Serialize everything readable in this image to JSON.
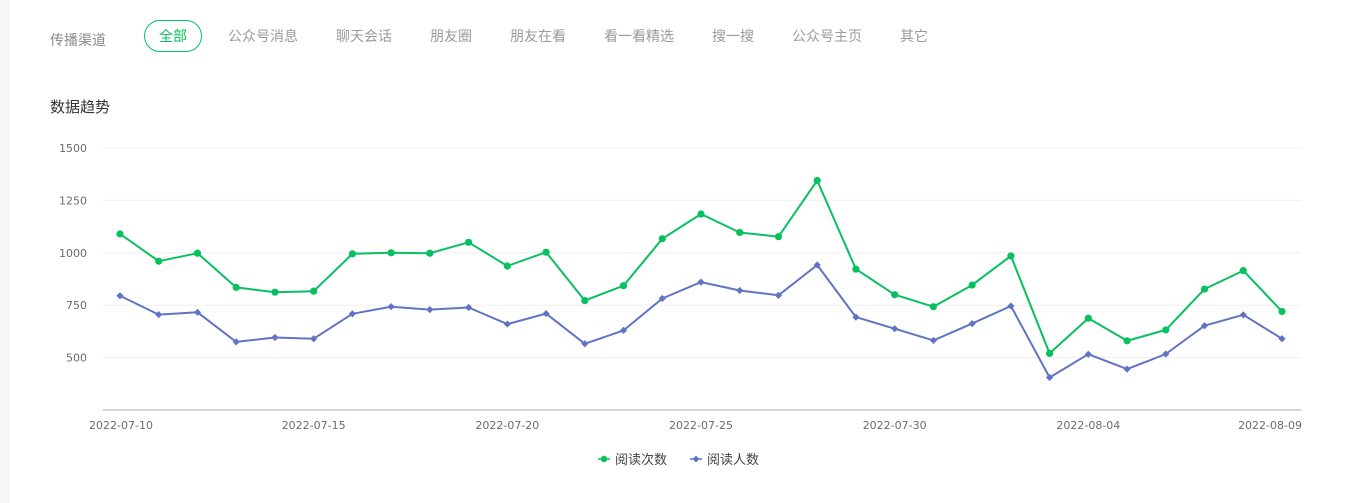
{
  "filter": {
    "label": "传播渠道",
    "tabs": [
      {
        "label": "全部",
        "active": true
      },
      {
        "label": "公众号消息",
        "active": false
      },
      {
        "label": "聊天会话",
        "active": false
      },
      {
        "label": "朋友圈",
        "active": false
      },
      {
        "label": "朋友在看",
        "active": false
      },
      {
        "label": "看一看精选",
        "active": false
      },
      {
        "label": "搜一搜",
        "active": false
      },
      {
        "label": "公众号主页",
        "active": false
      },
      {
        "label": "其它",
        "active": false
      }
    ]
  },
  "section": {
    "title": "数据趋势"
  },
  "colors": {
    "accent": "#07c160",
    "series1": "#07c160",
    "series2": "#6173c4"
  },
  "chart_data": {
    "type": "line",
    "x": [
      "2022-07-10",
      "2022-07-11",
      "2022-07-12",
      "2022-07-13",
      "2022-07-14",
      "2022-07-15",
      "2022-07-16",
      "2022-07-17",
      "2022-07-18",
      "2022-07-19",
      "2022-07-20",
      "2022-07-21",
      "2022-07-22",
      "2022-07-23",
      "2022-07-24",
      "2022-07-25",
      "2022-07-26",
      "2022-07-27",
      "2022-07-28",
      "2022-07-29",
      "2022-07-30",
      "2022-07-31",
      "2022-08-01",
      "2022-08-02",
      "2022-08-03",
      "2022-08-04",
      "2022-08-05",
      "2022-08-06",
      "2022-08-07",
      "2022-08-08",
      "2022-08-09"
    ],
    "x_tick_labels": [
      "2022-07-10",
      "2022-07-15",
      "2022-07-20",
      "2022-07-25",
      "2022-07-30",
      "2022-08-04",
      "2022-08-09"
    ],
    "y_ticks": [
      500,
      750,
      1000,
      1250,
      1500
    ],
    "ylim": [
      250,
      1500
    ],
    "grid": true,
    "legend_position": "bottom-center",
    "series": [
      {
        "name": "阅读次数",
        "marker": "circle",
        "values": [
          1090,
          960,
          998,
          835,
          812,
          817,
          995,
          1000,
          998,
          1050,
          937,
          1003,
          772,
          843,
          1067,
          1185,
          1097,
          1077,
          1345,
          922,
          800,
          743,
          846,
          985,
          520,
          688,
          580,
          632,
          827,
          915,
          720
        ]
      },
      {
        "name": "阅读人数",
        "marker": "diamond",
        "values": [
          795,
          705,
          716,
          575,
          596,
          590,
          709,
          743,
          729,
          739,
          660,
          710,
          566,
          630,
          782,
          860,
          820,
          797,
          942,
          693,
          638,
          582,
          662,
          746,
          405,
          516,
          445,
          517,
          652,
          704,
          590
        ]
      }
    ]
  }
}
